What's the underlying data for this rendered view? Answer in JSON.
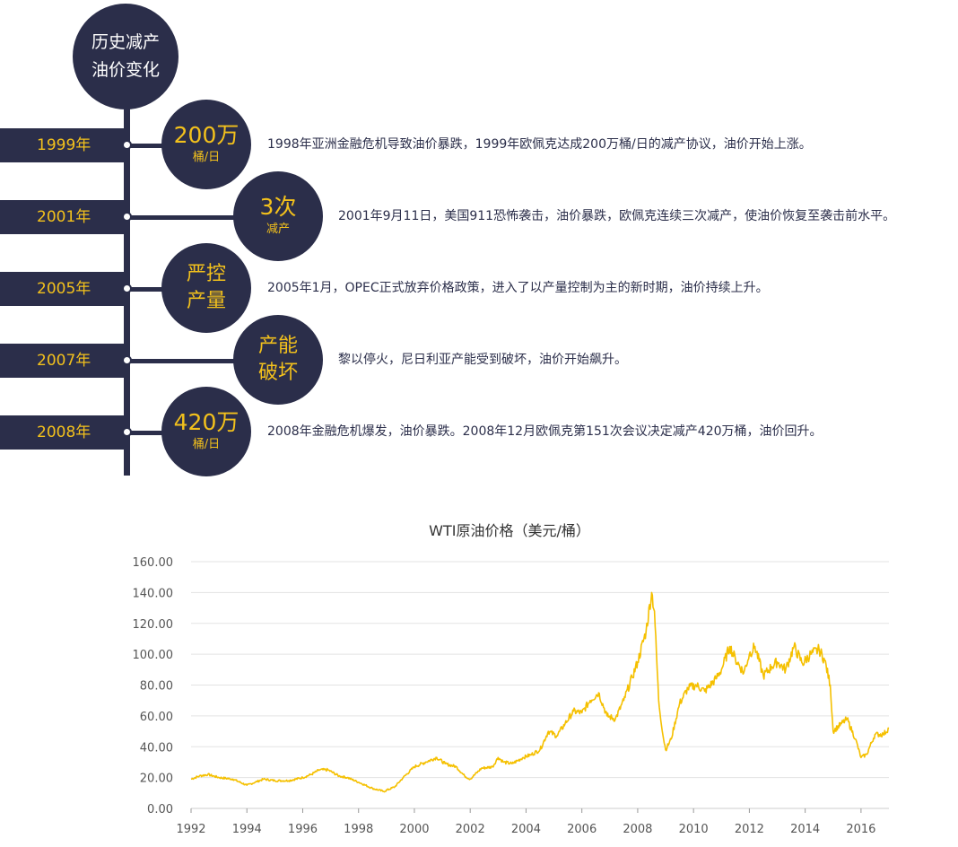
{
  "header": {
    "line1": "历史减产",
    "line2": "油价变化"
  },
  "timeline": [
    {
      "year": "1999年",
      "badge_main": "200万",
      "badge_sub": "桶/日",
      "desc": "1998年亚洲金融危机导致油价暴跌，1999年欧佩克达成200万桶/日的减产协议，油价开始上涨。"
    },
    {
      "year": "2001年",
      "badge_main": "3次",
      "badge_sub": "减产",
      "desc": "2001年9月11日，美国911恐怖袭击，油价暴跌，欧佩克连续三次减产，使油价恢复至袭击前水平。"
    },
    {
      "year": "2005年",
      "badge_main": "严控",
      "badge_sub": "产量",
      "desc": "2005年1月，OPEC正式放弃价格政策，进入了以产量控制为主的新时期，油价持续上升。"
    },
    {
      "year": "2007年",
      "badge_main": "产能",
      "badge_sub": "破坏",
      "desc": "黎以停火，尼日利亚产能受到破坏，油价开始飙升。"
    },
    {
      "year": "2008年",
      "badge_main": "420万",
      "badge_sub": "桶/日",
      "desc": "2008年金融危机爆发，油价暴跌。2008年12月欧佩克第151次会议决定减产420万桶，油价回升。"
    }
  ],
  "colors": {
    "navy": "#2b2e4a",
    "gold": "#f3c11c",
    "line": "#f5c000",
    "grid": "#e3e3e3"
  },
  "chart_data": {
    "type": "line",
    "title": "WTI原油价格（美元/桶）",
    "xlabel": "",
    "ylabel": "",
    "xlim": [
      1992,
      2017
    ],
    "ylim": [
      0,
      160
    ],
    "x_ticks": [
      "1992",
      "1994",
      "1996",
      "1998",
      "2000",
      "2002",
      "2004",
      "2006",
      "2008",
      "2010",
      "2012",
      "2014",
      "2016"
    ],
    "y_ticks": [
      "0.00",
      "20.00",
      "40.00",
      "60.00",
      "80.00",
      "100.00",
      "120.00",
      "140.00",
      "160.00"
    ],
    "grid": true,
    "legend": "none",
    "series": [
      {
        "name": "",
        "x": [
          1992.0,
          1992.3,
          1992.6,
          1993.0,
          1993.5,
          1994.0,
          1994.3,
          1994.6,
          1995.0,
          1995.5,
          1996.0,
          1996.3,
          1996.6,
          1996.9,
          1997.3,
          1997.6,
          1998.0,
          1998.5,
          1998.9,
          1999.3,
          1999.6,
          2000.0,
          2000.4,
          2000.8,
          2001.1,
          2001.5,
          2001.8,
          2002.0,
          2002.4,
          2002.8,
          2003.0,
          2003.2,
          2003.5,
          2003.9,
          2004.2,
          2004.5,
          2004.8,
          2005.1,
          2005.4,
          2005.7,
          2006.0,
          2006.3,
          2006.6,
          2006.9,
          2007.2,
          2007.5,
          2007.8,
          2008.0,
          2008.3,
          2008.5,
          2008.6,
          2008.75,
          2008.9,
          2009.0,
          2009.2,
          2009.5,
          2009.8,
          2010.1,
          2010.4,
          2010.8,
          2011.0,
          2011.3,
          2011.5,
          2011.8,
          2012.0,
          2012.2,
          2012.5,
          2012.8,
          2013.0,
          2013.3,
          2013.6,
          2013.9,
          2014.2,
          2014.5,
          2014.7,
          2014.9,
          2015.0,
          2015.3,
          2015.5,
          2015.8,
          2016.0,
          2016.2,
          2016.5,
          2016.8,
          2017.0
        ],
        "values": [
          19,
          21,
          22,
          20,
          19,
          15,
          17,
          19,
          18,
          18,
          20,
          22,
          25,
          25,
          21,
          20,
          17,
          13,
          11,
          14,
          20,
          27,
          30,
          33,
          29,
          27,
          21,
          19,
          26,
          27,
          33,
          30,
          29,
          33,
          35,
          38,
          50,
          47,
          55,
          63,
          62,
          70,
          75,
          60,
          58,
          70,
          85,
          95,
          115,
          140,
          128,
          70,
          48,
          38,
          45,
          68,
          78,
          80,
          76,
          84,
          90,
          105,
          97,
          88,
          100,
          105,
          86,
          92,
          95,
          90,
          105,
          94,
          100,
          103,
          96,
          80,
          50,
          55,
          58,
          45,
          33,
          35,
          48,
          48,
          52
        ]
      }
    ]
  }
}
